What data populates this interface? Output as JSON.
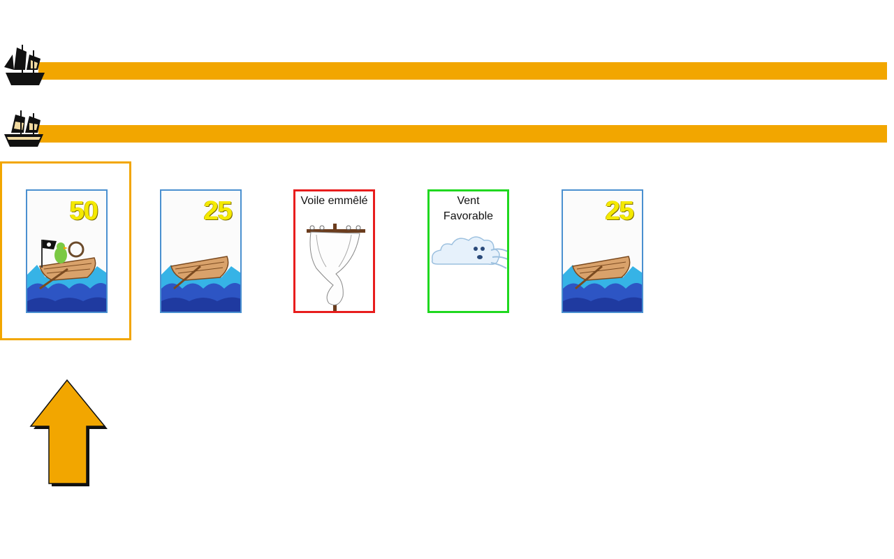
{
  "tracks": [
    {
      "icon": "pirate-ship-icon",
      "color": "#f2a600"
    },
    {
      "icon": "pirate-ship-icon",
      "color": "#f2a600"
    }
  ],
  "hand": {
    "selected_index": 0,
    "cards": [
      {
        "type": "distance",
        "value": "50",
        "art": "boat-with-pirate-parrot"
      },
      {
        "type": "distance",
        "value": "25",
        "art": "rowboat-on-waves"
      },
      {
        "type": "hazard",
        "title": "Voile emmêlé",
        "art": "tangled-sail-mast",
        "color": "#e81d1d"
      },
      {
        "type": "remedy",
        "title": "Vent Favorable",
        "art": "blowing-cloud",
        "color": "#1fd81f"
      },
      {
        "type": "distance",
        "value": "25",
        "art": "rowboat-on-waves"
      }
    ]
  },
  "play_arrow": {
    "icon": "up-arrow-icon",
    "color": "#f2a600"
  }
}
